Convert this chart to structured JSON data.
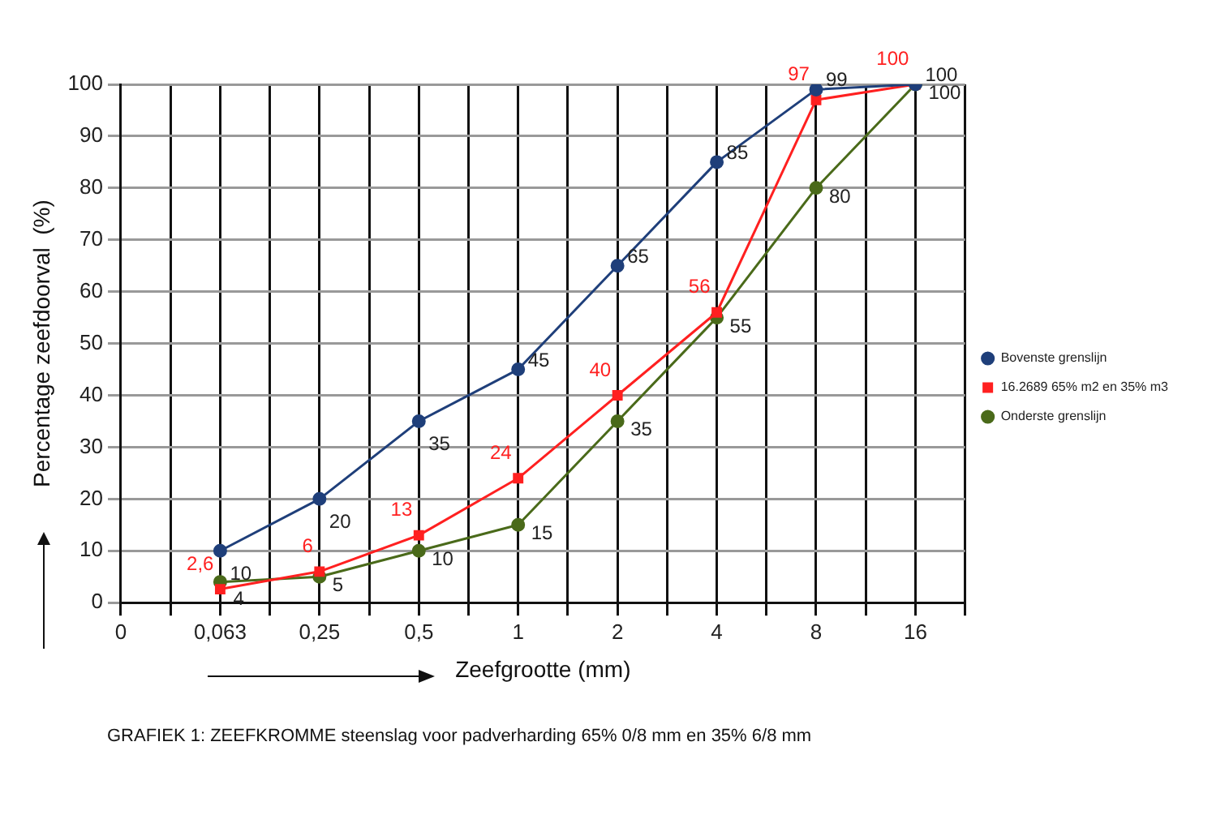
{
  "chart_data": {
    "type": "line",
    "ylabel": "Percentage zeefdoorval  (%)",
    "xlabel": "Zeefgrootte (mm)",
    "categories": [
      "0",
      "0,063",
      "0,25",
      "0,5",
      "1",
      "2",
      "4",
      "8",
      "16"
    ],
    "ylim": [
      0,
      100
    ],
    "yticks": [
      0,
      10,
      20,
      30,
      40,
      50,
      60,
      70,
      80,
      90,
      100
    ],
    "grid": true,
    "legend": "right",
    "series": [
      {
        "name": "Bovenste grenslijn",
        "color": "#1f3f7a",
        "marker": "circle",
        "values": [
          null,
          10,
          20,
          35,
          45,
          65,
          85,
          99,
          100
        ],
        "value_labels": [
          null,
          "10",
          "20",
          "35",
          "45",
          "65",
          "85",
          "99",
          "100"
        ]
      },
      {
        "name": "16.2689 65% m2 en 35% m3",
        "color": "#ff2020",
        "marker": "square",
        "values": [
          null,
          2.6,
          6,
          13,
          24,
          40,
          56,
          97,
          100
        ],
        "value_labels": [
          null,
          "2,6",
          "6",
          "13",
          "24",
          "40",
          "56",
          "97",
          "100"
        ]
      },
      {
        "name": "Onderste grenslijn",
        "color": "#4a6a1a",
        "marker": "circle",
        "values": [
          null,
          4,
          5,
          10,
          15,
          35,
          55,
          80,
          100
        ],
        "value_labels": [
          null,
          "4",
          "5",
          "10",
          "15",
          "35",
          "55",
          "80",
          "100"
        ]
      }
    ],
    "annotations": [
      "GRAFIEK  1: ZEEFKROMME steenslag voor padverharding 65% 0/8 mm en 35% 6/8 mm"
    ]
  }
}
